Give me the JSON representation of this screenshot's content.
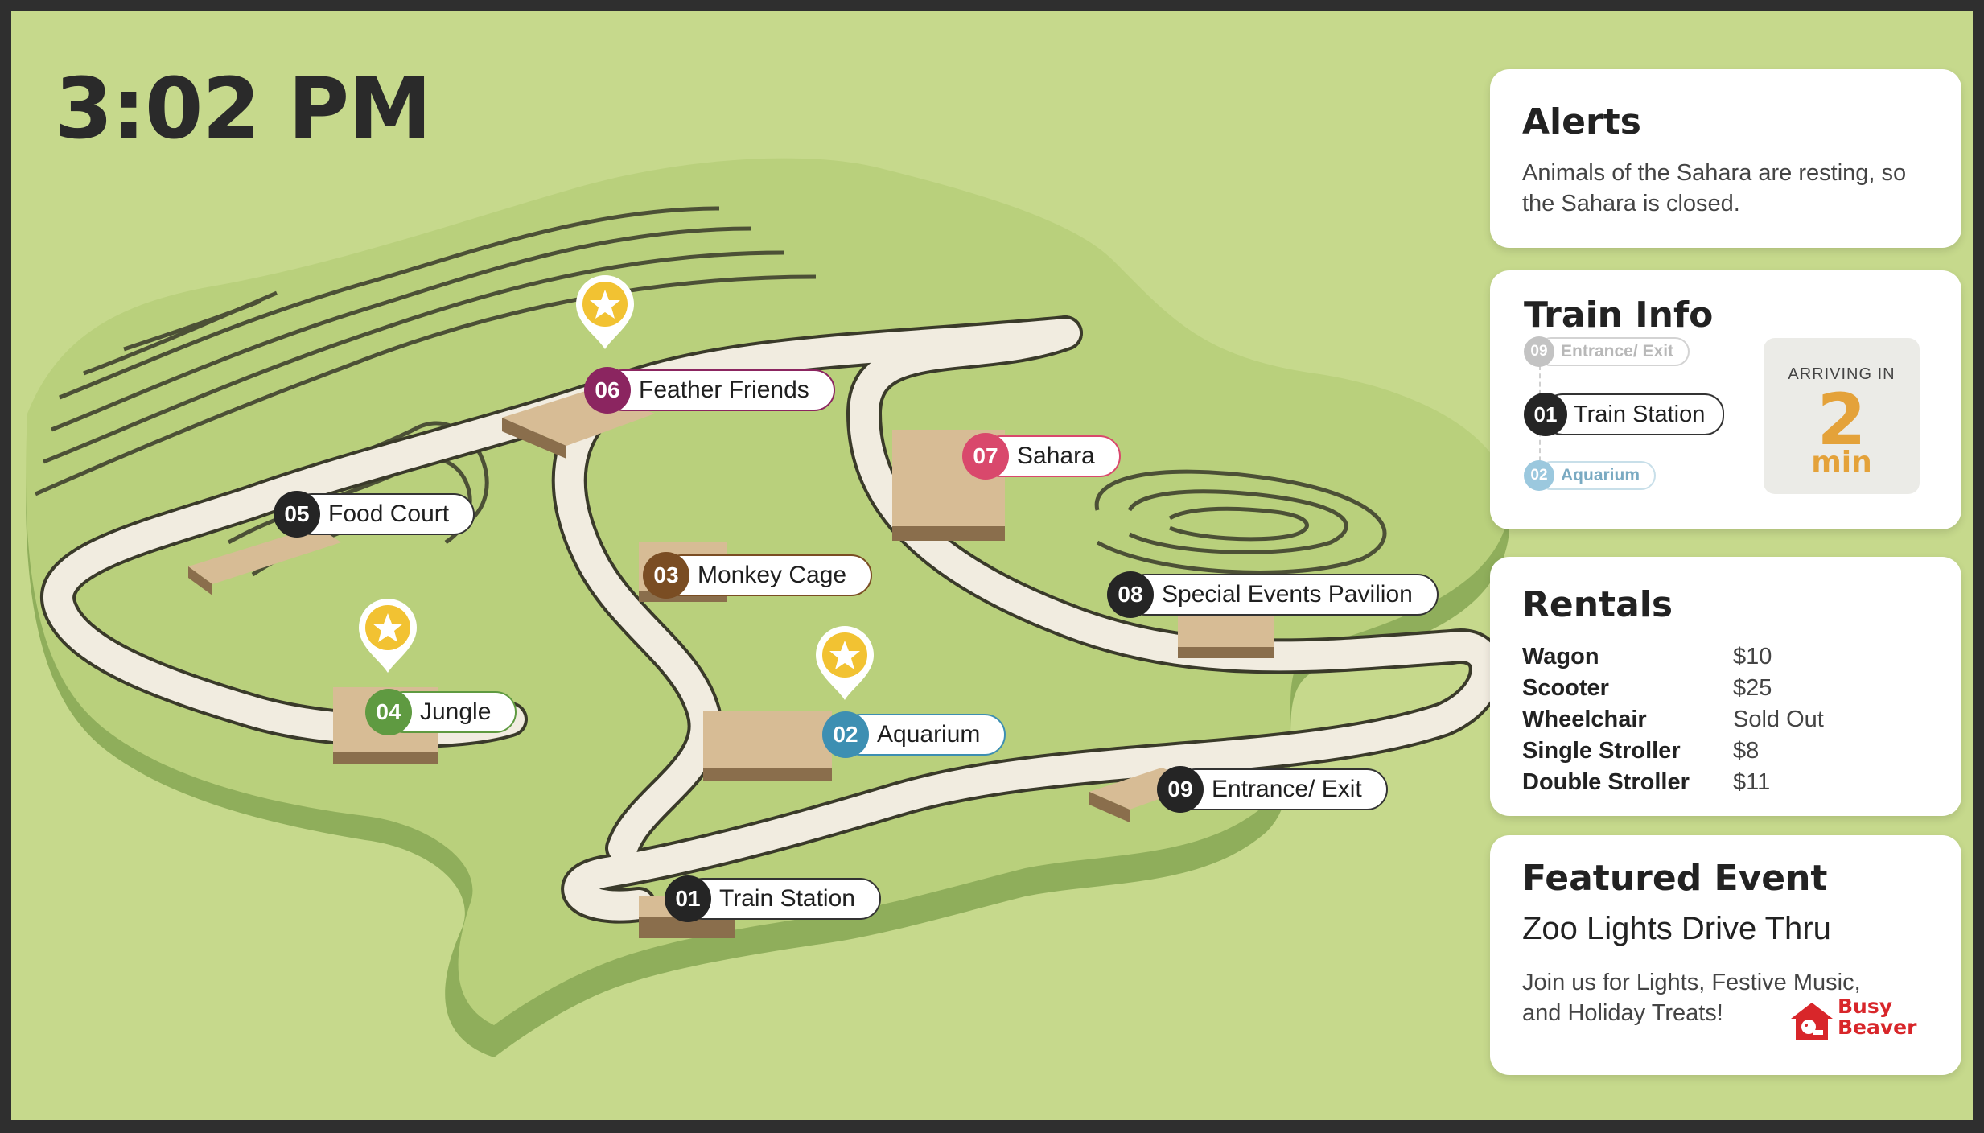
{
  "clock": {
    "time": "3:02 PM"
  },
  "map": {
    "locations": [
      {
        "num": "01",
        "name": "Train Station",
        "color": "#252525"
      },
      {
        "num": "02",
        "name": "Aquarium",
        "color": "#3d8fb2"
      },
      {
        "num": "03",
        "name": "Monkey Cage",
        "color": "#7a4d23"
      },
      {
        "num": "04",
        "name": "Jungle",
        "color": "#5f9a41"
      },
      {
        "num": "05",
        "name": "Food Court",
        "color": "#252525"
      },
      {
        "num": "06",
        "name": "Feather Friends",
        "color": "#8b2560"
      },
      {
        "num": "07",
        "name": "Sahara",
        "color": "#d9486c"
      },
      {
        "num": "08",
        "name": "Special Events Pavilion",
        "color": "#252525"
      },
      {
        "num": "09",
        "name": "Entrance/ Exit",
        "color": "#252525"
      }
    ],
    "featured_pin_icon": "star-pin-icon",
    "pin_color": "#f2c232"
  },
  "alerts": {
    "title": "Alerts",
    "message": "Animals of the Sahara are resting, so the Sahara is closed."
  },
  "train": {
    "title": "Train Info",
    "previous": {
      "num": "09",
      "name": "Entrance/ Exit"
    },
    "current": {
      "num": "01",
      "name": "Train Station"
    },
    "next": {
      "num": "02",
      "name": "Aquarium"
    },
    "arriving_label": "ARRIVING IN",
    "arriving_value": "2",
    "arriving_unit": "min",
    "accent_color": "#e4a23a"
  },
  "rentals": {
    "title": "Rentals",
    "items": [
      {
        "item": "Wagon",
        "price": "$10"
      },
      {
        "item": "Scooter",
        "price": "$25"
      },
      {
        "item": "Wheelchair",
        "price": "Sold Out"
      },
      {
        "item": "Single Stroller",
        "price": "$8"
      },
      {
        "item": "Double Stroller",
        "price": "$11"
      }
    ]
  },
  "featured": {
    "title": "Featured Event",
    "event_name": "Zoo Lights Drive Thru",
    "description": "Join us for Lights, Festive Music, and Holiday Treats!",
    "sponsor_line1": "Busy",
    "sponsor_line2": "Beaver",
    "sponsor_color": "#d8262a"
  }
}
